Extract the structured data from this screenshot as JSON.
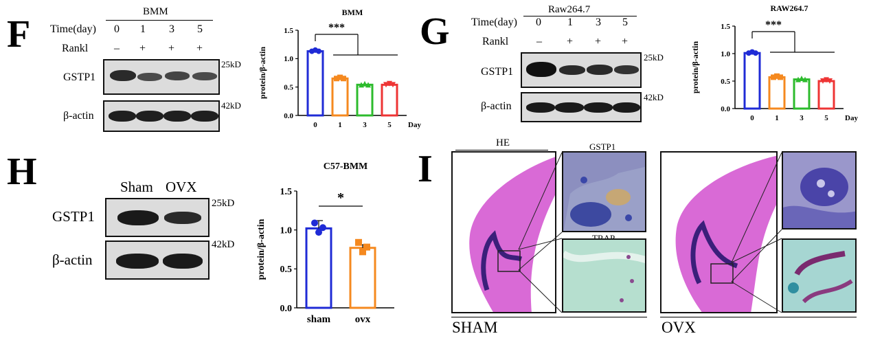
{
  "panels": {
    "F": {
      "letter": "F",
      "blot": {
        "cell_label": "BMM",
        "row_time_label": "Time(day)",
        "time_values": [
          "0",
          "1",
          "3",
          "5"
        ],
        "row_rankl_label": "Rankl",
        "rankl_values": [
          "–",
          "+",
          "+",
          "+"
        ],
        "proteins": [
          "GSTP1",
          "β-actin"
        ],
        "kd_labels": [
          "25kD",
          "42kD"
        ]
      }
    },
    "G": {
      "letter": "G",
      "blot": {
        "cell_label": "Raw264.7",
        "row_time_label": "Time(day)",
        "time_values": [
          "0",
          "1",
          "3",
          "5"
        ],
        "row_rankl_label": "Rankl",
        "rankl_values": [
          "–",
          "+",
          "+",
          "+"
        ],
        "proteins": [
          "GSTP1",
          "β-actin"
        ],
        "kd_labels": [
          "25kD",
          "42kD"
        ]
      }
    },
    "H": {
      "letter": "H",
      "blot": {
        "lanes": [
          "Sham",
          "OVX"
        ],
        "proteins": [
          "GSTP1",
          "β-actin"
        ],
        "kd_labels": [
          "25kD",
          "42kD"
        ]
      }
    },
    "I": {
      "letter": "I",
      "he_label": "HE",
      "gstp1_label": "GSTP1",
      "trap_label": "TRAP",
      "sham_label": "SHAM",
      "ovx_label": "OVX"
    }
  },
  "colors": {
    "blue": "#1f2bd6",
    "orange": "#f5891f",
    "green": "#2dbb2d",
    "red": "#ee3434",
    "he_pink": "#d96ad6",
    "he_purple": "#3b1f7a"
  },
  "chart_data": [
    {
      "id": "F",
      "type": "bar",
      "title": "BMM",
      "categories": [
        "0",
        "1",
        "3",
        "5"
      ],
      "values": [
        1.13,
        0.65,
        0.54,
        0.54
      ],
      "colors": [
        "#1f2bd6",
        "#f5891f",
        "#2dbb2d",
        "#ee3434"
      ],
      "xlabel": "Day",
      "ylabel": "protein/β-actin",
      "ylim": [
        0,
        1.5
      ],
      "yticks": [
        "0.0",
        "0.5",
        "1.0",
        "1.5"
      ],
      "significance": "***"
    },
    {
      "id": "G",
      "type": "bar",
      "title": "RAW264.7",
      "categories": [
        "0",
        "1",
        "3",
        "5"
      ],
      "values": [
        1.01,
        0.57,
        0.53,
        0.5
      ],
      "colors": [
        "#1f2bd6",
        "#f5891f",
        "#2dbb2d",
        "#ee3434"
      ],
      "xlabel": "Day",
      "ylabel": "protein/β-actin",
      "ylim": [
        0,
        1.5
      ],
      "yticks": [
        "0.0",
        "0.5",
        "1.0",
        "1.5"
      ],
      "significance": "***"
    },
    {
      "id": "H",
      "type": "bar",
      "title": "C57-BMM",
      "categories": [
        "sham",
        "ovx"
      ],
      "values": [
        1.02,
        0.77
      ],
      "errors": [
        0.1,
        0.04
      ],
      "colors": [
        "#1f2bd6",
        "#f5891f"
      ],
      "xlabel": "",
      "ylabel": "protein/β-actin",
      "ylim": [
        0,
        1.5
      ],
      "yticks": [
        "0.0",
        "0.5",
        "1.0",
        "1.5"
      ],
      "significance": "*"
    }
  ]
}
